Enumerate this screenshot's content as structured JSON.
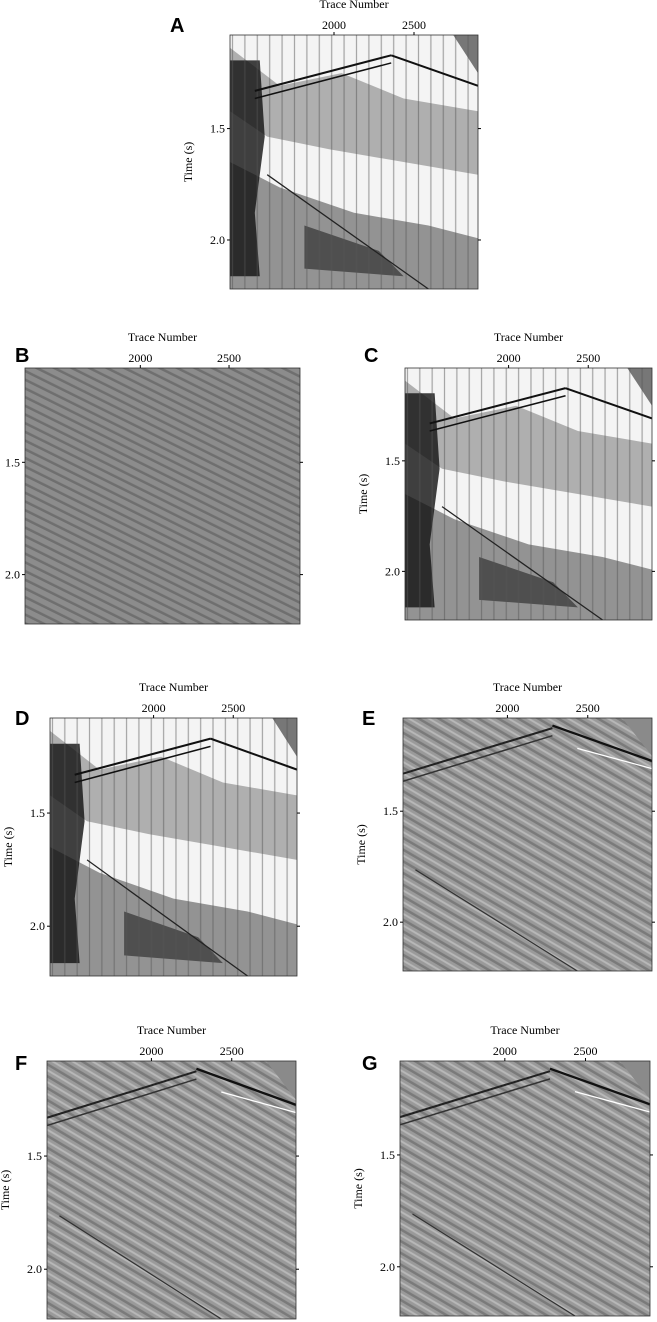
{
  "panels": [
    {
      "label": "A",
      "x_label": "Trace Number",
      "y_label": "Time (s)"
    },
    {
      "label": "B",
      "x_label": "Trace Number",
      "y_label": "Time (s)"
    },
    {
      "label": "C",
      "x_label": "Trace Number",
      "y_label": "Time (s)"
    },
    {
      "label": "D",
      "x_label": "Trace Number",
      "y_label": "Time (s)"
    },
    {
      "label": "E",
      "x_label": "Trace Number",
      "y_label": "Time (s)"
    },
    {
      "label": "F",
      "x_label": "Trace Number",
      "y_label": "Time (s)"
    },
    {
      "label": "G",
      "x_label": "Trace Number",
      "y_label": "Time (s)"
    }
  ],
  "xlim": [
    1350,
    2900
  ],
  "xticks": [
    2000,
    2500
  ],
  "ylim": [
    1.08,
    2.22
  ],
  "yticks": [
    1.5,
    {
      "value": 2,
      "label": "2.0"
    }
  ]
}
